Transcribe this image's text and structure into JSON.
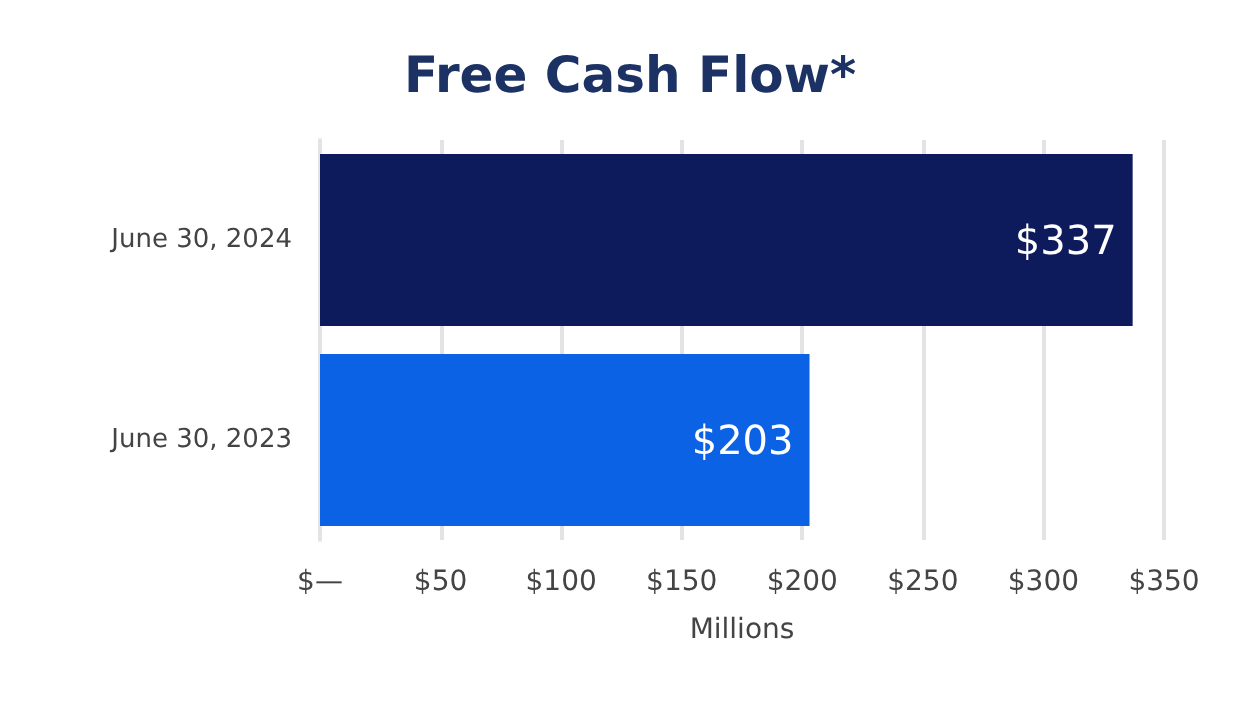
{
  "chart_data": {
    "type": "bar",
    "orientation": "horizontal",
    "title": "Free Cash Flow*",
    "xlabel": "Millions",
    "categories": [
      "June 30, 2024",
      "June 30, 2023"
    ],
    "values": [
      337,
      203
    ],
    "colors": [
      "#0d1b5c",
      "#0b62e4"
    ],
    "value_labels": [
      "$337",
      "$203"
    ],
    "xlim": [
      0,
      350
    ],
    "xticks": [
      {
        "value": 0,
        "label": "$—"
      },
      {
        "value": 50,
        "label": "$50"
      },
      {
        "value": 100,
        "label": "$100"
      },
      {
        "value": 150,
        "label": "$150"
      },
      {
        "value": 200,
        "label": "$200"
      },
      {
        "value": 250,
        "label": "$250"
      },
      {
        "value": 300,
        "label": "$300"
      },
      {
        "value": 350,
        "label": "$350"
      }
    ],
    "grid": "x"
  }
}
